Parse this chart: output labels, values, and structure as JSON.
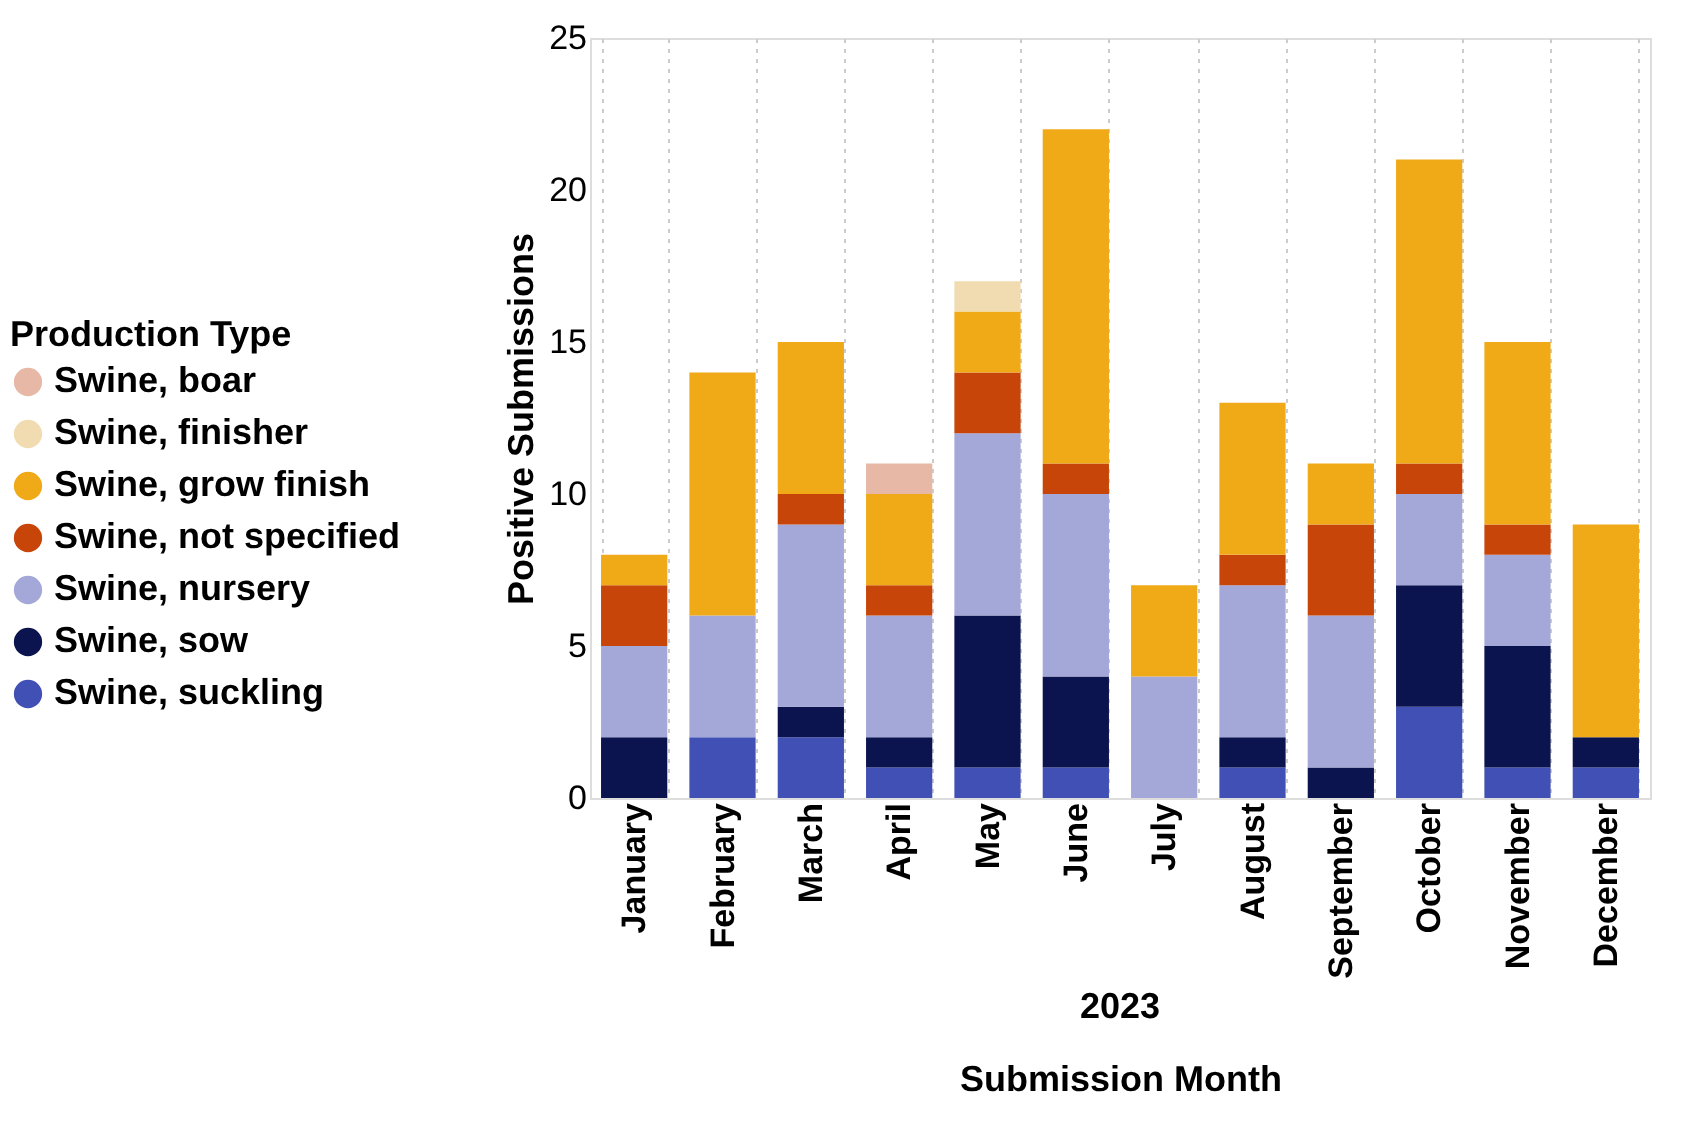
{
  "chart_data": {
    "type": "bar",
    "stacked": true,
    "xlabel": "Submission Month",
    "ylabel": "Positive Submissions",
    "legend_title": "Production Type",
    "legend": "left",
    "grid": "x",
    "annotations": [
      "2023"
    ],
    "categories": [
      "January",
      "February",
      "March",
      "April",
      "May",
      "June",
      "July",
      "August",
      "September",
      "October",
      "November",
      "December"
    ],
    "ylim": [
      0,
      25
    ],
    "yticks": [
      0,
      5,
      10,
      15,
      20,
      25
    ],
    "series": [
      {
        "name": "Swine, suckling",
        "color": "#4050b5",
        "values": [
          0,
          2,
          2,
          1,
          1,
          1,
          0,
          1,
          0,
          3,
          1,
          1
        ]
      },
      {
        "name": "Swine, sow",
        "color": "#0c1450",
        "values": [
          2,
          0,
          1,
          1,
          5,
          3,
          0,
          1,
          1,
          4,
          4,
          1
        ]
      },
      {
        "name": "Swine, nursery",
        "color": "#a3a8d8",
        "values": [
          3,
          4,
          6,
          4,
          6,
          6,
          4,
          5,
          5,
          3,
          3,
          0
        ]
      },
      {
        "name": "Swine, not specified",
        "color": "#c8450a",
        "values": [
          2,
          0,
          1,
          1,
          2,
          1,
          0,
          1,
          3,
          1,
          1,
          0
        ]
      },
      {
        "name": "Swine, grow finish",
        "color": "#f0aa18",
        "values": [
          1,
          8,
          5,
          3,
          2,
          11,
          3,
          5,
          2,
          10,
          6,
          7
        ]
      },
      {
        "name": "Swine, finisher",
        "color": "#f1dcb2",
        "values": [
          0,
          0,
          0,
          0,
          1,
          0,
          0,
          0,
          0,
          0,
          0,
          0
        ]
      },
      {
        "name": "Swine, boar",
        "color": "#e8b8a6",
        "values": [
          0,
          0,
          0,
          1,
          0,
          0,
          0,
          0,
          0,
          0,
          0,
          0
        ]
      }
    ]
  }
}
